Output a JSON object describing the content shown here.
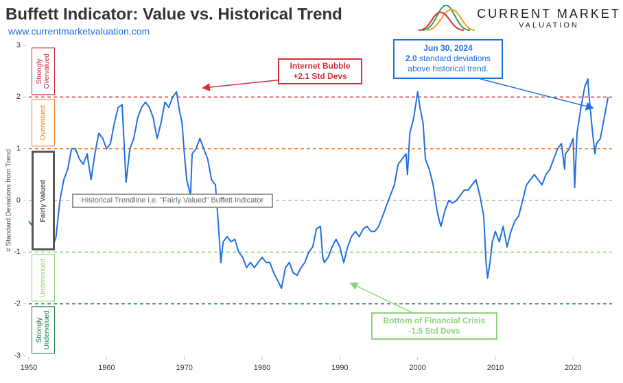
{
  "chart_data": {
    "type": "line",
    "title": "Buffett Indicator: Value vs. Historical Trend",
    "subtitle": "www.currentmarketvaluation.com",
    "brand": [
      "CURRENT MARKET",
      "VALUATION"
    ],
    "y_label": "# Standard Deviations from Trend",
    "color": "#1f6fe0",
    "xlim": [
      1950,
      2025
    ],
    "xticks": [
      1950,
      1960,
      1970,
      1980,
      1990,
      2000,
      2010,
      2020
    ],
    "ylim": [
      -3,
      3
    ],
    "yticks": [
      3,
      2,
      1,
      0,
      -1,
      -2,
      -3
    ],
    "reference_lines": [
      {
        "value": 2,
        "color": "#d62d3c"
      },
      {
        "value": 1,
        "color": "#ef7d22"
      },
      {
        "value": 0,
        "color": "#b5b5b5"
      },
      {
        "value": -1,
        "color": "#8fd27a"
      },
      {
        "value": -2,
        "color": "#1b7a4a"
      }
    ],
    "zones": [
      {
        "label": "Strongly Overvalued",
        "from": 2,
        "to": 3,
        "color": "#c4243a"
      },
      {
        "label": "Overvalued",
        "from": 1,
        "to": 2,
        "color": "#ef7d22"
      },
      {
        "label": "Fairly Valued",
        "from": -1,
        "to": 1,
        "color": "#555555"
      },
      {
        "label": "Undervalued",
        "from": -2,
        "to": -1,
        "color": "#8fd27a"
      },
      {
        "label": "Strongly Undervalued",
        "from": -3,
        "to": -2,
        "color": "#1b7a4a"
      }
    ],
    "annotations": {
      "trendline": "Historical Trendline i.e. \"Fairly Valued\" Buffett Indicator",
      "bubble": [
        "Internet Bubble",
        "+2.1 Std Devs"
      ],
      "crisis": [
        "Bottom of Financial Crisis",
        "-1.5 Std Devs"
      ],
      "latest": [
        "Jun 30, 2024",
        "2.0",
        "standard deviations",
        "above historical trend."
      ]
    },
    "x": [
      1950,
      1950.5,
      1951,
      1951.5,
      1952,
      1952.5,
      1953,
      1953.5,
      1954,
      1954.5,
      1955,
      1955.5,
      1956,
      1956.5,
      1957,
      1957.5,
      1958,
      1958.5,
      1959,
      1959.5,
      1960,
      1960.5,
      1961,
      1961.5,
      1962,
      1962.5,
      1963,
      1963.5,
      1964,
      1964.5,
      1965,
      1965.5,
      1966,
      1966.5,
      1967,
      1967.5,
      1968,
      1968.5,
      1969,
      1969.3,
      1969.7,
      1970,
      1970.3,
      1970.8,
      1971,
      1971.5,
      1972,
      1972.5,
      1973,
      1973.5,
      1974,
      1974.3,
      1974.7,
      1975,
      1975.5,
      1976,
      1976.5,
      1977,
      1977.5,
      1978,
      1978.5,
      1979,
      1979.5,
      1980,
      1980.5,
      1981,
      1981.5,
      1982,
      1982.5,
      1983,
      1983.5,
      1984,
      1984.5,
      1985,
      1985.5,
      1986,
      1986.5,
      1987,
      1987.5,
      1987.8,
      1988,
      1988.5,
      1989,
      1989.5,
      1990,
      1990.5,
      1991,
      1991.5,
      1992,
      1992.5,
      1993,
      1993.5,
      1994,
      1994.5,
      1995,
      1995.5,
      1996,
      1996.5,
      1997,
      1997.5,
      1998,
      1998.5,
      1998.7,
      1999,
      1999.5,
      2000,
      2000.3,
      2000.7,
      2001,
      2001.5,
      2002,
      2002.5,
      2002.8,
      2003,
      2003.5,
      2004,
      2004.5,
      2005,
      2005.5,
      2006,
      2006.5,
      2007,
      2007.5,
      2008,
      2008.5,
      2008.8,
      2009,
      2009.3,
      2009.6,
      2010,
      2010.5,
      2011,
      2011.5,
      2012,
      2012.5,
      2013,
      2013.5,
      2014,
      2014.5,
      2015,
      2015.5,
      2016,
      2016.5,
      2017,
      2017.5,
      2018,
      2018.5,
      2018.9,
      2019,
      2019.5,
      2020,
      2020.2,
      2020.5,
      2021,
      2021.5,
      2021.9,
      2022,
      2022.5,
      2022.8,
      2023,
      2023.5,
      2024,
      2024.5
    ],
    "values": [
      -0.4,
      -0.5,
      -0.6,
      -0.8,
      -0.9,
      -0.85,
      -0.95,
      -0.7,
      0.0,
      0.4,
      0.6,
      1.0,
      1.0,
      0.8,
      0.7,
      0.9,
      0.4,
      0.9,
      1.3,
      1.2,
      1.0,
      1.1,
      1.5,
      1.8,
      1.85,
      0.35,
      1.0,
      1.2,
      1.6,
      1.8,
      1.9,
      1.8,
      1.6,
      1.2,
      1.5,
      1.9,
      1.8,
      2.0,
      2.1,
      1.8,
      1.5,
      0.9,
      0.4,
      0.1,
      0.9,
      1.0,
      1.2,
      1.0,
      0.8,
      0.4,
      0.3,
      -0.3,
      -1.2,
      -0.8,
      -0.7,
      -0.8,
      -0.75,
      -1.0,
      -1.1,
      -1.3,
      -1.2,
      -1.3,
      -1.2,
      -1.1,
      -1.2,
      -1.2,
      -1.4,
      -1.55,
      -1.7,
      -1.3,
      -1.2,
      -1.4,
      -1.45,
      -1.3,
      -1.2,
      -1.0,
      -0.9,
      -0.55,
      -0.5,
      -1.1,
      -1.2,
      -1.1,
      -0.9,
      -0.75,
      -0.9,
      -1.2,
      -0.9,
      -0.7,
      -0.6,
      -0.7,
      -0.55,
      -0.5,
      -0.6,
      -0.6,
      -0.5,
      -0.3,
      -0.1,
      0.1,
      0.3,
      0.7,
      0.8,
      0.9,
      0.5,
      1.3,
      1.6,
      2.1,
      1.8,
      1.5,
      0.8,
      0.6,
      0.3,
      -0.2,
      -0.4,
      -0.5,
      -0.2,
      0.0,
      -0.05,
      0.0,
      0.1,
      0.2,
      0.2,
      0.3,
      0.4,
      0.1,
      -0.3,
      -1.2,
      -1.5,
      -1.2,
      -0.8,
      -0.6,
      -0.8,
      -0.5,
      -0.9,
      -0.6,
      -0.4,
      -0.3,
      0.0,
      0.3,
      0.4,
      0.5,
      0.4,
      0.3,
      0.5,
      0.6,
      0.8,
      1.0,
      1.1,
      0.6,
      0.9,
      1.0,
      1.2,
      0.25,
      1.3,
      1.8,
      2.2,
      2.35,
      2.1,
      1.3,
      0.9,
      1.1,
      1.2,
      1.6,
      2.0
    ]
  }
}
